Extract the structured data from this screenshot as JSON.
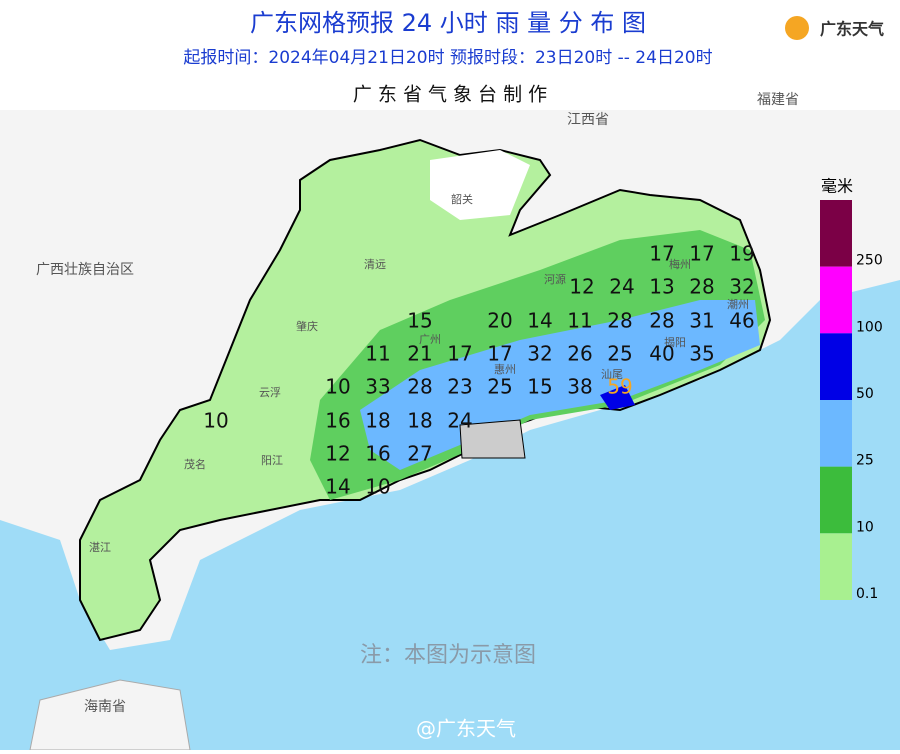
{
  "header": {
    "title": "广东网格预报 24 小时 雨 量 分 布 图",
    "subtitle": "起报时间：2024年04月21日20时   预报时段：23日20时 -- 24日20时",
    "producer": "广 东 省 气 象 台 制 作",
    "logo": "广东天气"
  },
  "places": [
    "广西壮族自治区",
    "江西省",
    "福建省",
    "海南省",
    "韶关",
    "清远",
    "肇庆",
    "云浮",
    "阳江",
    "茂名",
    "湛江",
    "河源",
    "梅州",
    "潮州",
    "揭阳",
    "汕尾",
    "惠州",
    "广州"
  ],
  "rainfall": [
    17,
    17,
    19,
    12,
    24,
    13,
    28,
    32,
    15,
    20,
    14,
    11,
    28,
    28,
    31,
    46,
    11,
    21,
    17,
    17,
    32,
    26,
    25,
    40,
    35,
    10,
    33,
    28,
    23,
    25,
    15,
    38,
    59,
    10,
    16,
    18,
    18,
    24,
    12,
    16,
    27,
    14,
    10
  ],
  "legend": {
    "title": "毫米",
    "levels": [
      {
        "label": "250",
        "color": "#7b0046"
      },
      {
        "label": "100",
        "color": "#ff00ff"
      },
      {
        "label": "50",
        "color": "#0000e6"
      },
      {
        "label": "25",
        "color": "#6cb8ff"
      },
      {
        "label": "10",
        "color": "#3cbc3c"
      },
      {
        "label": "0.1",
        "color": "#a8f090"
      }
    ]
  },
  "note": "注：本图为示意图",
  "watermark": "@广东天气"
}
